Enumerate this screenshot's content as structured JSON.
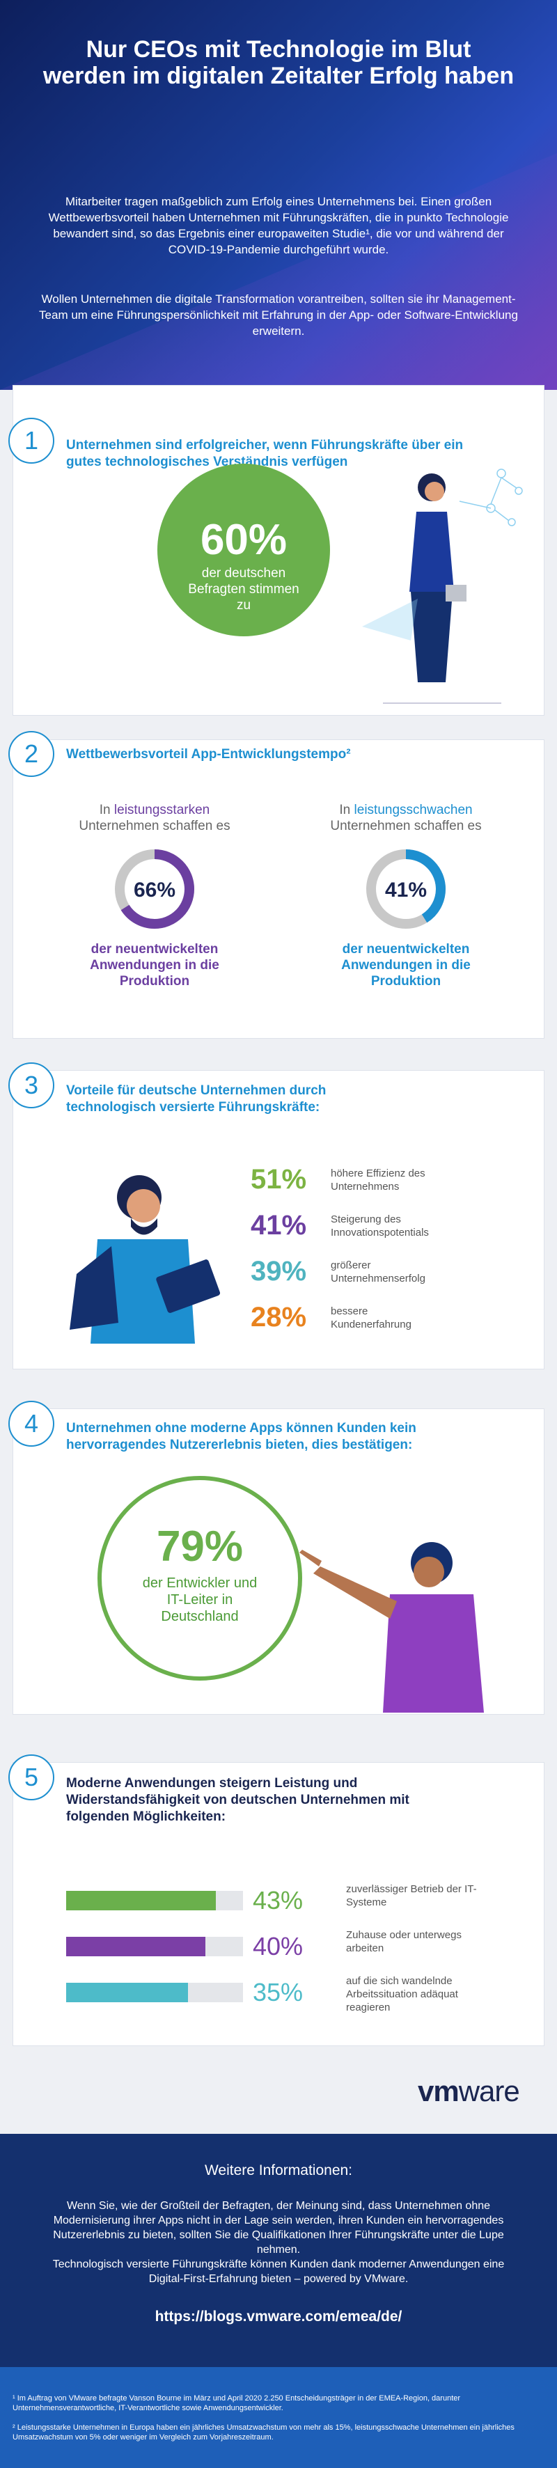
{
  "header": {
    "title": "Nur CEOs mit Technologie im Blut werden im digitalen Zeitalter Erfolg haben",
    "intro": [
      "Mitarbeiter tragen maßgeblich zum Erfolg eines Unternehmens bei. Einen großen Wettbewerbsvorteil haben Unternehmen mit Führungskräften, die in punkto Technologie bewandert sind, so das Ergebnis einer europaweiten Studie¹, die vor und während der COVID-19-Pandemie durchgeführt wurde.",
      "Wollen Unternehmen die digitale Transformation vorantreiben, sollten sie ihr Management-Team um eine Führungspersönlichkeit mit Erfahrung in der App- oder Software-Entwicklung erweitern."
    ]
  },
  "sections": [
    {
      "number": "1",
      "heading": "Unternehmen sind erfolgreicher, wenn Führungskräfte über ein gutes technologisches Verständnis verfügen",
      "stat": {
        "label": "60%",
        "text": "der deutschen Befragten stimmen zu"
      }
    },
    {
      "number": "2",
      "heading": "Wettbewerbsvorteil App-Entwicklungstempo²",
      "columns": [
        {
          "pre": "In",
          "highlight": "leistungsstarken",
          "post": "Unternehmen schaffen es",
          "value": 66,
          "label": "66%",
          "text": "der neuentwickelten Anwendungen in die Produktion",
          "color": "#6b3fa0"
        },
        {
          "pre": "In",
          "highlight": "leistungsschwachen",
          "post": "Unternehmen schaffen es",
          "value": 41,
          "label": "41%",
          "text": "der neuentwickelten Anwendungen in die Produktion",
          "color": "#1d8fd0"
        }
      ]
    },
    {
      "number": "3",
      "heading": "Vorteile für deutsche Unternehmen durch technologisch versierte Führungskräfte:",
      "items": [
        {
          "label": "51%",
          "text": "höhere Effizienz des Unternehmens",
          "color": "#7cb342"
        },
        {
          "label": "41%",
          "text": "Steigerung des Innovationspotentials",
          "color": "#6b3fa0"
        },
        {
          "label": "39%",
          "text": "größerer Unternehmenserfolg",
          "color": "#4fb3bf"
        },
        {
          "label": "28%",
          "text": "bessere Kundenerfahrung",
          "color": "#e8821e"
        }
      ]
    },
    {
      "number": "4",
      "heading": "Unternehmen ohne moderne Apps können Kunden kein hervorragendes Nutzererlebnis bieten, dies bestätigen:",
      "stat": {
        "label": "79%",
        "text": "der Entwickler und IT-Leiter in Deutschland"
      }
    },
    {
      "number": "5",
      "heading": "Moderne Anwendungen steigern Leistung und Widerstandsfähigkeit von deutschen Unternehmen mit folgenden Möglichkeiten:",
      "bars": [
        {
          "value": 43,
          "label": "43%",
          "text": "zuverlässiger Betrieb der IT-Systeme",
          "color": "#6ab04c"
        },
        {
          "value": 40,
          "label": "40%",
          "text": "Zuhause oder unterwegs arbeiten",
          "color": "#7b3fa6"
        },
        {
          "value": 35,
          "label": "35%",
          "text": "auf die sich wandelnde Arbeitssituation adäquat reagieren",
          "color": "#4dbbc9"
        }
      ]
    }
  ],
  "logo": {
    "vm": "vm",
    "ware": "ware"
  },
  "footer": {
    "title": "Weitere Informationen:",
    "paragraphs": [
      "Wenn Sie, wie der Großteil der Befragten, der Meinung sind, dass Unternehmen ohne Modernisierung ihrer Apps nicht in der Lage sein werden, ihren Kunden ein hervorragendes Nutzererlebnis zu bieten, sollten Sie die Qualifikationen Ihrer Führungskräfte unter die Lupe nehmen.",
      "Technologisch versierte Führungskräfte können Kunden dank moderner Anwendungen eine Digital-First-Erfahrung bieten – powered by VMware."
    ],
    "url": "https://blogs.vmware.com/emea/de/"
  },
  "footnotes": [
    "¹ Im Auftrag von VMware befragte Vanson Bourne im März und April 2020 2.250 Entscheidungsträger in der EMEA-Region, darunter Unternehmensverantwortliche, IT-Verantwortliche sowie Anwendungsentwickler.",
    "² Leistungsstarke Unternehmen in Europa haben ein jährliches Umsatzwachstum von mehr als 15%, leistungsschwache Unternehmen ein jährliches Umsatzwachstum von 5% oder weniger im Vergleich zum Vorjahreszeitraum."
  ]
}
